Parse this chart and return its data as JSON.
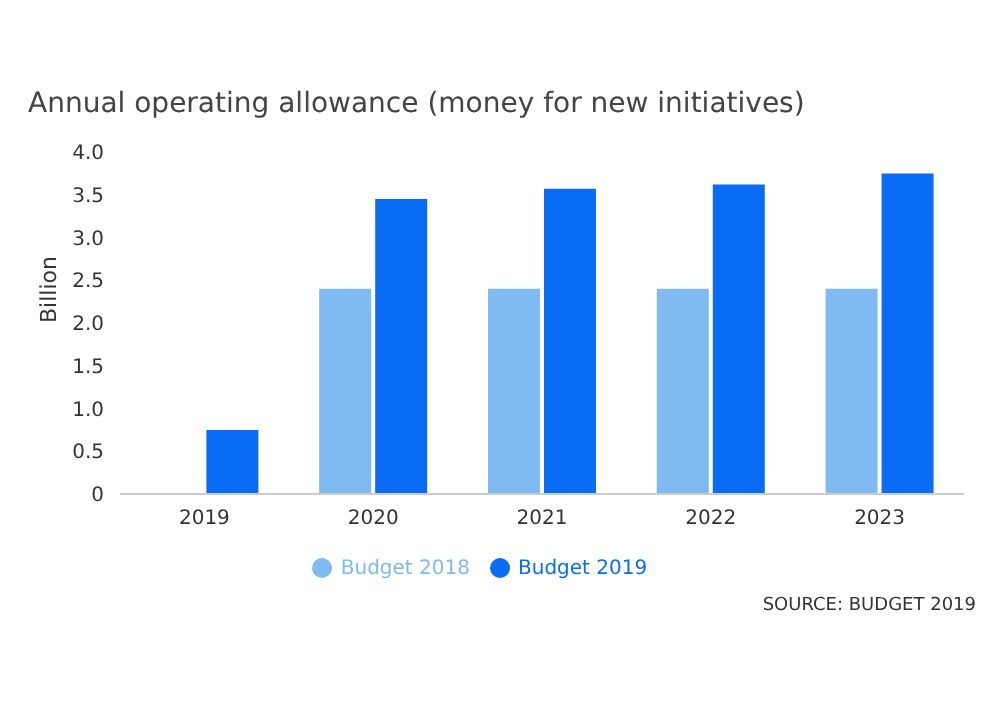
{
  "chart_data": {
    "type": "bar",
    "title": "Annual operating allowance (money for new initiatives)",
    "ylabel": "Billion",
    "categories": [
      "2019",
      "2020",
      "2021",
      "2022",
      "2023"
    ],
    "series": [
      {
        "name": "Budget 2018",
        "color": "#7fbaf2",
        "values": [
          null,
          2.4,
          2.4,
          2.4,
          2.4
        ]
      },
      {
        "name": "Budget 2019",
        "color": "#0a6cf5",
        "values": [
          0.75,
          3.45,
          3.57,
          3.62,
          3.75
        ]
      }
    ],
    "ylim": [
      0,
      4
    ],
    "yticks": [
      {
        "value": 0,
        "label": "0"
      },
      0.5,
      {
        "value": 1,
        "label": "1.0"
      },
      1.5,
      {
        "value": 2,
        "label": "2.0"
      },
      2.5,
      {
        "value": 3,
        "label": "3.0"
      },
      3.5,
      {
        "value": 4,
        "label": "4.0"
      }
    ],
    "legend": "bottom",
    "annotations": [
      "SOURCE: BUDGET 2019"
    ]
  }
}
